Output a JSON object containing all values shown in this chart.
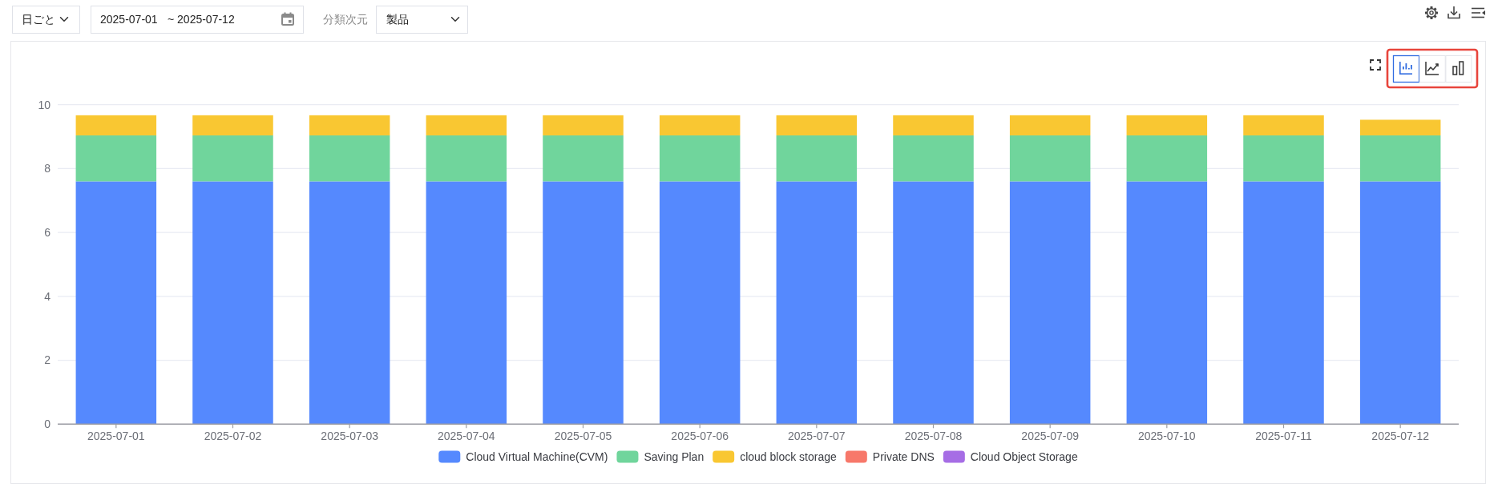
{
  "chart_data": {
    "type": "bar",
    "stacked": true,
    "categories": [
      "2025-07-01",
      "2025-07-02",
      "2025-07-03",
      "2025-07-04",
      "2025-07-05",
      "2025-07-06",
      "2025-07-07",
      "2025-07-08",
      "2025-07-09",
      "2025-07-10",
      "2025-07-11",
      "2025-07-12"
    ],
    "series": [
      {
        "name": "Cloud Virtual Machine(CVM)",
        "color": "#5589fe",
        "values": [
          7.6,
          7.6,
          7.6,
          7.6,
          7.6,
          7.6,
          7.6,
          7.6,
          7.6,
          7.6,
          7.6,
          7.6
        ]
      },
      {
        "name": "Saving Plan",
        "color": "#70d59c",
        "values": [
          1.44,
          1.44,
          1.44,
          1.44,
          1.44,
          1.44,
          1.44,
          1.44,
          1.44,
          1.44,
          1.44,
          1.44
        ]
      },
      {
        "name": "cloud block storage",
        "color": "#f9c732",
        "values": [
          0.63,
          0.63,
          0.63,
          0.63,
          0.63,
          0.63,
          0.63,
          0.63,
          0.63,
          0.63,
          0.63,
          0.49
        ]
      },
      {
        "name": "Private DNS",
        "color": "#f7786a",
        "values": [
          null,
          null,
          null,
          null,
          null,
          null,
          null,
          null,
          null,
          null,
          null,
          null
        ]
      },
      {
        "name": "Cloud Object Storage",
        "color": "#a66de5",
        "values": [
          null,
          null,
          null,
          null,
          null,
          null,
          null,
          null,
          null,
          null,
          null,
          null
        ]
      }
    ],
    "ylim": [
      0,
      10
    ],
    "yticks": [
      0,
      2,
      4,
      6,
      8,
      10
    ],
    "grid": "y",
    "legend": "bottom",
    "annotations": [
      "日ごと",
      "2025-07-01",
      "~ 2025-07-12",
      "分類次元",
      "製品"
    ]
  }
}
